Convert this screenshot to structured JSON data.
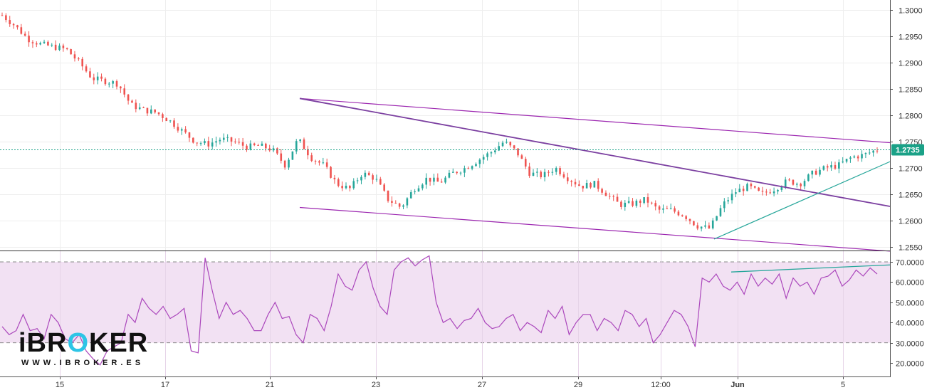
{
  "chart_data": [
    {
      "type": "candlestick",
      "instrument_panel": "price",
      "y_axis": {
        "range": [
          1.2545,
          1.3015
        ],
        "ticks": [
          "1.3000",
          "1.2950",
          "1.2900",
          "1.2850",
          "1.2800",
          "1.2750",
          "1.2700",
          "1.2650",
          "1.2600",
          "1.2550"
        ]
      },
      "x_axis": {
        "ticks": [
          {
            "label": "15"
          },
          {
            "label": "17"
          },
          {
            "label": "21"
          },
          {
            "label": "23"
          },
          {
            "label": "27"
          },
          {
            "label": "29"
          },
          {
            "label": "12:00"
          },
          {
            "label": "Jun",
            "bold": true
          },
          {
            "label": "5"
          }
        ]
      },
      "close_path": [
        1.299,
        1.297,
        1.2945,
        1.2935,
        1.293,
        1.2925,
        1.29,
        1.287,
        1.2865,
        1.286,
        1.282,
        1.281,
        1.2805,
        1.279,
        1.277,
        1.275,
        1.2745,
        1.2755,
        1.275,
        1.274,
        1.2742,
        1.2735,
        1.2705,
        1.2755,
        1.272,
        1.2705,
        1.267,
        1.266,
        1.269,
        1.268,
        1.264,
        1.2625,
        1.266,
        1.268,
        1.2672,
        1.269,
        1.27,
        1.2715,
        1.273,
        1.275,
        1.273,
        1.269,
        1.2685,
        1.27,
        1.268,
        1.2665,
        1.267,
        1.265,
        1.263,
        1.2632,
        1.264,
        1.262,
        1.262,
        1.261,
        1.259,
        1.2585,
        1.263,
        1.2655,
        1.2665,
        1.265,
        1.266,
        1.2675,
        1.267,
        1.269,
        1.27,
        1.2705,
        1.272,
        1.2725,
        1.2735
      ],
      "last_price": {
        "value": 1.2735,
        "label": "1.2735",
        "color": "#1aa187"
      },
      "candle_colors": {
        "up": "#26a69a",
        "down": "#ef5350"
      },
      "drawings": [
        {
          "name": "upper-channel-line",
          "from": {
            "x": "2018-05-22",
            "y": 1.2832
          },
          "to": {
            "x": "2018-06-05",
            "y": 1.2748
          },
          "color": "#9c27b0"
        },
        {
          "name": "lower-channel-line",
          "from": {
            "x": "2018-05-22",
            "y": 1.2625
          },
          "to": {
            "x": "2018-06-05",
            "y": 1.2542
          },
          "color": "#9c27b0"
        },
        {
          "name": "broken-downtrend-line",
          "from": {
            "x": "2018-05-22",
            "y": 1.2832
          },
          "to": {
            "x": "2018-06-05",
            "y": 1.2627
          },
          "color": "#7b3fa0"
        },
        {
          "name": "rising-support-line",
          "from": {
            "x": "2018-06-01",
            "y": 1.2565
          },
          "to": {
            "x": "2018-06-05",
            "y": 1.2712
          },
          "color": "#26a69a"
        }
      ]
    },
    {
      "type": "line",
      "instrument_panel": "rsi",
      "y_axis": {
        "range": [
          16,
          73
        ],
        "ticks": [
          "70.0000",
          "60.0000",
          "50.0000",
          "40.0000",
          "30.0000",
          "20.0000"
        ]
      },
      "band": {
        "upper": 70,
        "lower": 30,
        "fill": "#f2e1f3",
        "line_color": "#888888"
      },
      "line_color": "#ab47bc",
      "values": [
        38,
        34,
        36,
        44,
        36,
        37,
        32,
        44,
        40,
        32,
        30,
        34,
        26,
        22,
        19,
        26,
        28,
        30,
        44,
        40,
        52,
        47,
        44,
        48,
        42,
        44,
        47,
        26,
        25,
        72,
        56,
        42,
        50,
        44,
        46,
        42,
        36,
        36,
        44,
        50,
        42,
        43,
        34,
        30,
        44,
        42,
        36,
        48,
        64,
        58,
        56,
        66,
        70,
        57,
        48,
        44,
        66,
        70,
        72,
        68,
        71,
        73,
        50,
        40,
        42,
        37,
        41,
        42,
        47,
        40,
        37,
        38,
        42,
        44,
        36,
        40,
        38,
        35,
        46,
        42,
        48,
        34,
        40,
        44,
        44,
        36,
        42,
        40,
        36,
        46,
        44,
        38,
        42,
        30,
        34,
        40,
        46,
        44,
        38,
        28,
        62,
        60,
        64,
        58,
        56,
        60,
        54,
        64,
        58,
        62,
        59,
        64,
        52,
        62,
        58,
        60,
        54,
        62,
        63,
        66,
        58,
        61,
        66,
        63,
        67,
        64
      ],
      "divergence_line": {
        "from": {
          "x": "2018-06-01",
          "y": 65
        },
        "to": {
          "x": "2018-06-05",
          "y": 68.5
        },
        "color": "#26a69a"
      }
    }
  ],
  "brand": {
    "name": "iBROKER",
    "url": "WWW.IBROKER.ES",
    "accent_color": "#2ec5e6"
  }
}
